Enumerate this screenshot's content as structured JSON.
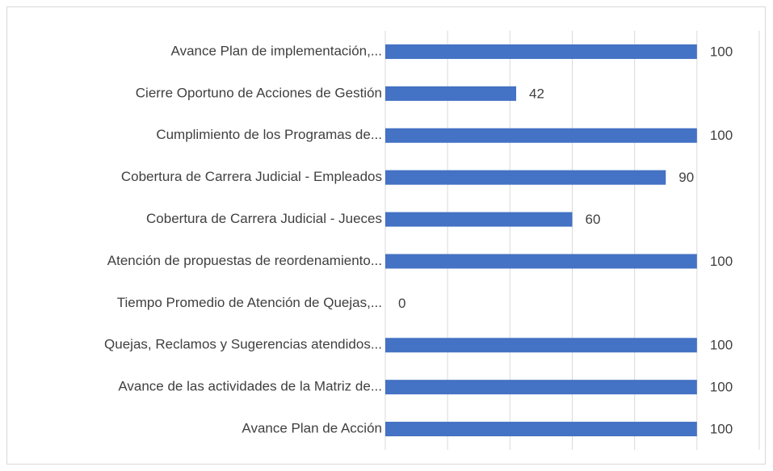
{
  "chart_data": {
    "type": "barh",
    "categories": [
      "Avance Plan de implementación,...",
      "Cierre Oportuno de Acciones de Gestión",
      "Cumplimiento de los Programas de...",
      "Cobertura de Carrera Judicial - Empleados",
      "Cobertura de Carrera Judicial - Jueces",
      "Atención de propuestas de reordenamiento...",
      "Tiempo Promedio de Atención de Quejas,...",
      "Quejas, Reclamos y Sugerencias atendidos...",
      "Avance de las actividades de la Matriz de...",
      "Avance Plan de Acción"
    ],
    "values": [
      100,
      42,
      100,
      90,
      60,
      100,
      0,
      100,
      100,
      100
    ],
    "color": "#4472c4",
    "xlim": [
      0,
      120
    ],
    "xticks": [
      0,
      20,
      40,
      60,
      80,
      100,
      120
    ],
    "grid": true
  }
}
